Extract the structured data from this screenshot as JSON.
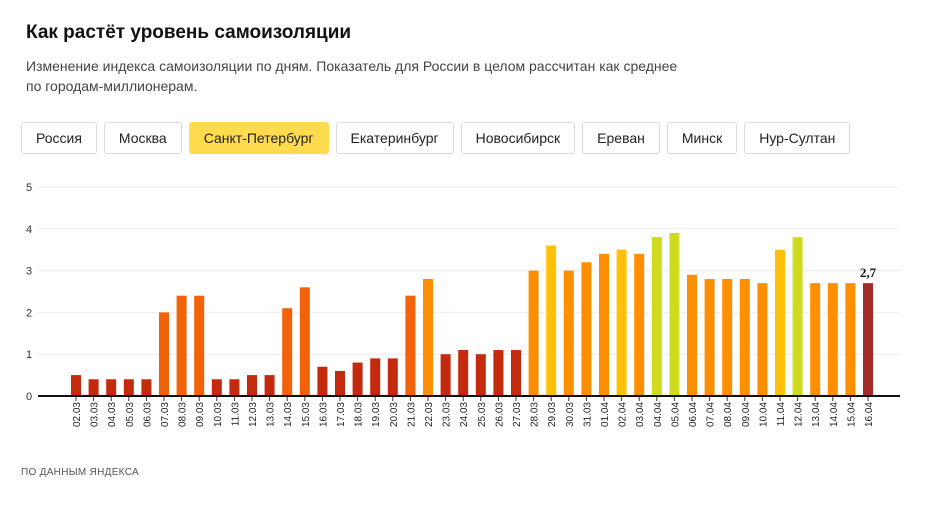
{
  "header": {
    "title": "Как растёт уровень самоизоляции",
    "subtitle_line1": "Изменение индекса самоизоляции по дням. Показатель для России в целом рассчитан как среднее",
    "subtitle_line2": "по городам-миллионерам."
  },
  "tabs": [
    {
      "label": "Россия",
      "active": false
    },
    {
      "label": "Москва",
      "active": false
    },
    {
      "label": "Санкт-Петербург",
      "active": true
    },
    {
      "label": "Екатеринбург",
      "active": false
    },
    {
      "label": "Новосибирск",
      "active": false
    },
    {
      "label": "Ереван",
      "active": false
    },
    {
      "label": "Минск",
      "active": false
    },
    {
      "label": "Нур-Султан",
      "active": false
    }
  ],
  "source": "По данным Яндекса",
  "colors": {
    "active_tab": "#ffdb4d",
    "low": "#c42a0d",
    "mid": "#f1620b",
    "high": "#fd8f00",
    "higher": "#ffc107",
    "top": "#cfdb1e",
    "last": "#a52a2a"
  },
  "chart_data": {
    "type": "bar",
    "ylim": [
      0,
      5
    ],
    "yticks": [
      0,
      1,
      2,
      3,
      4,
      5
    ],
    "grid": true,
    "categories": [
      "02.03",
      "03.03",
      "04.03",
      "05.03",
      "06.03",
      "07.03",
      "08.03",
      "09.03",
      "10.03",
      "11.03",
      "12.03",
      "13.03",
      "14.03",
      "15.03",
      "16.03",
      "17.03",
      "18.03",
      "19.03",
      "20.03",
      "21.03",
      "22.03",
      "23.03",
      "24.03",
      "25.03",
      "26.03",
      "27.03",
      "28.03",
      "29.03",
      "30.03",
      "31.03",
      "01.04",
      "02.04",
      "03.04",
      "04.04",
      "05.04",
      "06.04",
      "07.04",
      "08.04",
      "09.04",
      "10.04",
      "11.04",
      "12.04",
      "13.04",
      "14.04",
      "15.04",
      "16.04"
    ],
    "values": [
      0.5,
      0.4,
      0.4,
      0.4,
      0.4,
      2.0,
      2.4,
      2.4,
      0.4,
      0.4,
      0.5,
      0.5,
      2.1,
      2.6,
      0.7,
      0.6,
      0.8,
      0.9,
      0.9,
      2.4,
      2.8,
      1.0,
      1.1,
      1.0,
      1.1,
      1.1,
      3.0,
      3.6,
      3.0,
      3.2,
      3.4,
      3.5,
      3.4,
      3.8,
      3.9,
      2.9,
      2.8,
      2.8,
      2.8,
      2.7,
      3.5,
      3.8,
      2.7,
      2.7,
      2.7,
      2.7
    ],
    "last_label": "2,7"
  }
}
